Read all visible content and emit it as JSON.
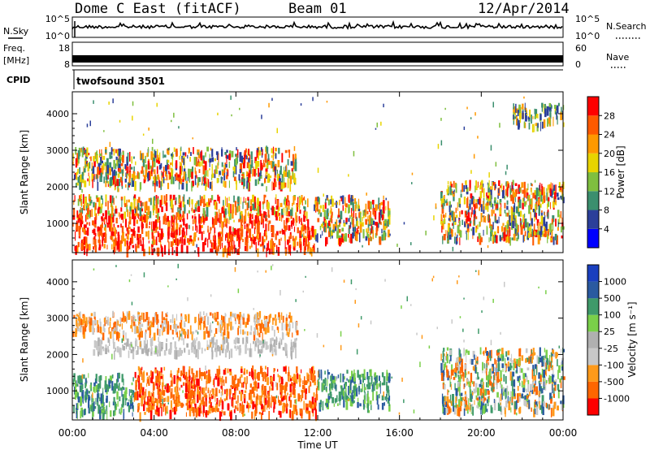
{
  "header": {
    "station": "Dome C East (fitACF)",
    "beam": "Beam 01",
    "date": "12/Apr/2014"
  },
  "top_panels": {
    "nsky_label": "N.Sky",
    "nsearch_label": "N.Search",
    "nsky_ticks": [
      "10^5",
      "10^0"
    ],
    "freq_label_1": "Freq.",
    "freq_label_2": "[MHz]",
    "freq_ticks": [
      "18",
      "8"
    ],
    "nave_label": "Nave",
    "nave_ticks": [
      "60",
      "0"
    ],
    "cpid_label": "CPID",
    "cpid_name": "twofsound 3501"
  },
  "colors": {
    "power_scale": [
      "#0000ff",
      "#2b3f9a",
      "#3b8f6e",
      "#7fbf3f",
      "#e8d400",
      "#ff9900",
      "#ff5a00",
      "#ff0000"
    ],
    "velocity_scale": [
      "#ff0000",
      "#ff6600",
      "#ff9a1a",
      "#c8c8c8",
      "#b0b0b0",
      "#7ad04a",
      "#3f9a6a",
      "#2a5aa0",
      "#1a3fbf"
    ]
  },
  "chart_data": [
    {
      "type": "heatmap",
      "panel": "power",
      "ylabel": "Slant Range [km]",
      "yticks": [
        "1000",
        "2000",
        "3000",
        "4000"
      ],
      "ylim": [
        200,
        4600
      ],
      "xlim_hours": [
        0,
        24
      ],
      "colorbar_label": "Power [dB]",
      "colorbar_ticks": [
        "4",
        "8",
        "12",
        "16",
        "20",
        "24",
        "28"
      ],
      "bands": [
        {
          "x_start_h": 0,
          "x_end_h": 11.8,
          "range_km": [
            300,
            1300
          ],
          "level": "high"
        },
        {
          "x_start_h": 0,
          "x_end_h": 11.5,
          "range_km": [
            1300,
            1800
          ],
          "level": "mid"
        },
        {
          "x_start_h": 0,
          "x_end_h": 11.0,
          "range_km": [
            2100,
            3100
          ],
          "level": "mixed"
        },
        {
          "x_start_h": 11.8,
          "x_end_h": 15.5,
          "range_km": [
            600,
            1800
          ],
          "level": "mixed"
        },
        {
          "x_start_h": 18.0,
          "x_end_h": 24.0,
          "range_km": [
            600,
            2200
          ],
          "level": "mixed"
        },
        {
          "x_start_h": 21.5,
          "x_end_h": 24.0,
          "range_km": [
            3700,
            4300
          ],
          "level": "low"
        }
      ]
    },
    {
      "type": "heatmap",
      "panel": "velocity",
      "ylabel": "Slant Range [km]",
      "yticks": [
        "1000",
        "2000",
        "3000",
        "4000"
      ],
      "ylim": [
        200,
        4600
      ],
      "xlim_hours": [
        0,
        24
      ],
      "xticks": [
        "00:00",
        "04:00",
        "08:00",
        "12:00",
        "16:00",
        "20:00",
        "00:00"
      ],
      "xlabel": "Time UT",
      "colorbar_label": "Velocity [m s⁻¹]",
      "colorbar_ticks": [
        "-1000",
        "-500",
        "-100",
        "-25",
        "25",
        "100",
        "500",
        "1000"
      ],
      "bands": [
        {
          "x_start_h": 0,
          "x_end_h": 3.0,
          "range_km": [
            400,
            1500
          ],
          "level": "green"
        },
        {
          "x_start_h": 3.0,
          "x_end_h": 12.0,
          "range_km": [
            400,
            1700
          ],
          "level": "orange"
        },
        {
          "x_start_h": 1.0,
          "x_end_h": 11.0,
          "range_km": [
            2100,
            2500
          ],
          "level": "grey"
        },
        {
          "x_start_h": 0,
          "x_end_h": 11.0,
          "range_km": [
            2600,
            3200
          ],
          "level": "orange-sparse"
        },
        {
          "x_start_h": 12.0,
          "x_end_h": 15.5,
          "range_km": [
            600,
            1600
          ],
          "level": "green"
        },
        {
          "x_start_h": 18.0,
          "x_end_h": 24.0,
          "range_km": [
            500,
            2200
          ],
          "level": "green-orange"
        }
      ]
    }
  ]
}
